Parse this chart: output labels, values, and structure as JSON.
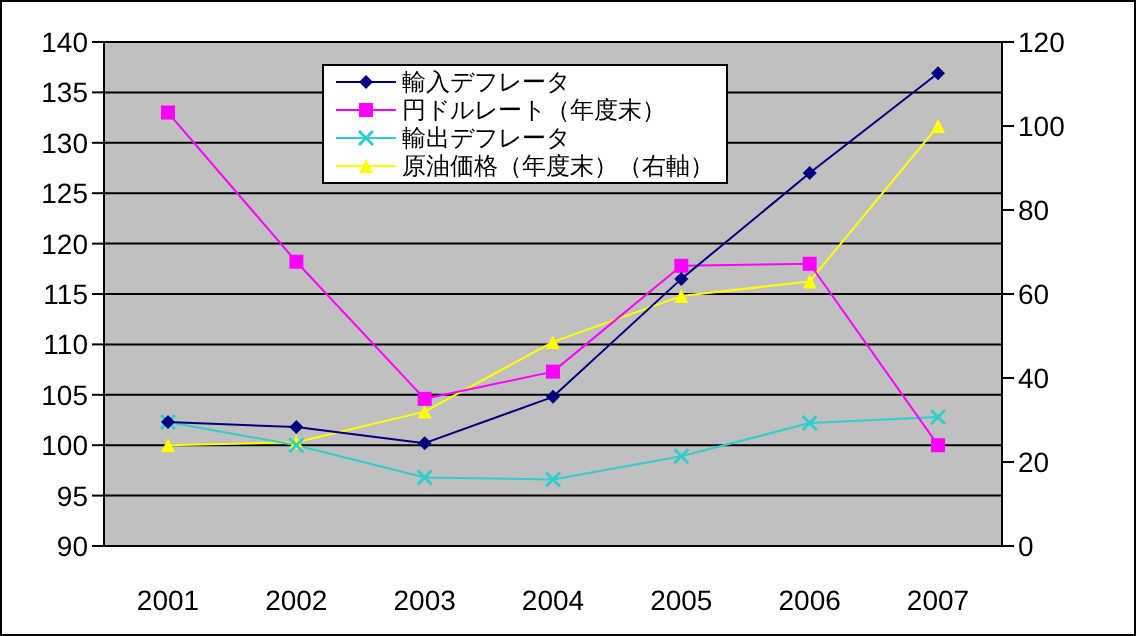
{
  "chart_data": {
    "type": "line",
    "categories": [
      "2001",
      "2002",
      "2003",
      "2004",
      "2005",
      "2006",
      "2007"
    ],
    "series": [
      {
        "name": "輸入デフレータ",
        "color": "#000080",
        "marker": "diamond",
        "values": [
          102.3,
          101.8,
          100.2,
          104.8,
          116.5,
          127,
          136.9
        ]
      },
      {
        "name": "円ドルレート（年度末）",
        "color": "#ff00ff",
        "marker": "square",
        "values": [
          133,
          118.2,
          104.6,
          107.3,
          117.8,
          118,
          100
        ]
      },
      {
        "name": "輸出デフレータ",
        "color": "#33cccc",
        "marker": "cross",
        "values": [
          102.3,
          100,
          96.8,
          96.6,
          98.9,
          102.2,
          102.8
        ]
      },
      {
        "name": "原油価格（年度末）（右軸）",
        "color": "#ffff00",
        "marker": "triangle",
        "axis": "y2",
        "values": [
          24,
          24.7,
          32,
          48.6,
          59.5,
          63,
          100
        ]
      }
    ],
    "ylim": [
      90,
      140
    ],
    "yticks": [
      90,
      95,
      100,
      105,
      110,
      115,
      120,
      125,
      130,
      135,
      140
    ],
    "y2lim": [
      0,
      120
    ],
    "y2ticks": [
      0,
      20,
      40,
      60,
      80,
      100,
      120
    ],
    "grid": "y",
    "legend": "top"
  }
}
